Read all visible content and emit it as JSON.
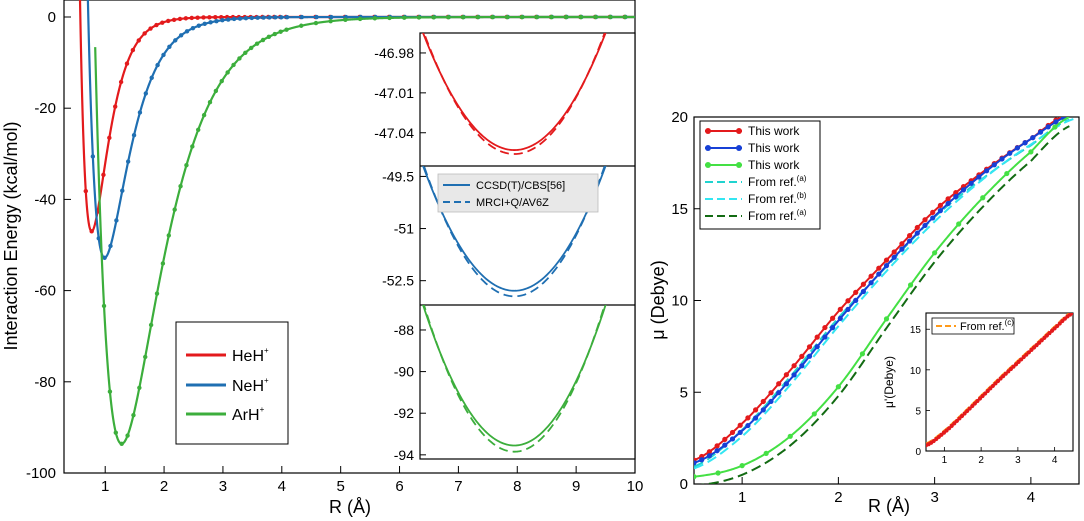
{
  "colors": {
    "red": "#e31a1c",
    "blue": "#1f6fb2",
    "green": "#3cae3c",
    "dot_red": "#e31a1c",
    "dot_blue": "#1740d6",
    "dot_green": "#44e044",
    "cyan": "#20d3cf",
    "lightcyan": "#33e6f2",
    "darkgreen": "#136b13",
    "orange": "#ff9a1a"
  },
  "chart_data": [
    {
      "id": "left-main",
      "type": "line",
      "xlabel": "R (Å)",
      "ylabel": "Interaction Energy (kcal/mol)",
      "xlim": [
        0.3,
        10
      ],
      "ylim": [
        -100,
        3
      ],
      "xticks": [
        "1",
        "2",
        "3",
        "4",
        "5",
        "6",
        "7",
        "8",
        "9",
        "10"
      ],
      "yticks": [
        "0",
        "-20",
        "-40",
        "-60",
        "-80",
        "-100"
      ],
      "legend": {
        "position": "bottom-left",
        "entries": [
          {
            "label": "HeH",
            "sup": "+"
          },
          {
            "label": "NeH",
            "sup": "+"
          },
          {
            "label": "ArH",
            "sup": "+"
          }
        ]
      },
      "series": [
        {
          "name": "HeH+",
          "De": 47.0,
          "Re": 0.77,
          "a": 3.6,
          "min_value": -47.0
        },
        {
          "name": "NeH+",
          "De": 52.8,
          "Re": 0.99,
          "a": 2.5,
          "min_value": -52.8
        },
        {
          "name": "ArH+",
          "De": 93.6,
          "Re": 1.28,
          "a": 1.5,
          "min_value": -93.6
        }
      ]
    },
    {
      "id": "inset-heh",
      "type": "line",
      "yticks": [
        "-46.98",
        "-47.01",
        "-47.04"
      ],
      "ylim": [
        -47.065,
        -46.965
      ],
      "series": [
        {
          "name": "CCSD(T)/CBS[56]",
          "style": "solid",
          "min": -47.053
        },
        {
          "name": "MRCI+Q/AV6Z",
          "style": "dashed",
          "min": -47.056
        }
      ]
    },
    {
      "id": "inset-neh",
      "type": "line",
      "yticks": [
        "-49.5",
        "-51",
        "-52.5"
      ],
      "ylim": [
        -53.2,
        -49.2
      ],
      "legend": {
        "position": "top",
        "entries": [
          "CCSD(T)/CBS[56]",
          "MRCI+Q/AV6Z"
        ]
      },
      "series": [
        {
          "name": "CCSD(T)/CBS[56]",
          "style": "solid",
          "min": -52.79
        },
        {
          "name": "MRCI+Q/AV6Z",
          "style": "dashed",
          "min": -52.95
        }
      ]
    },
    {
      "id": "inset-arh",
      "type": "line",
      "yticks": [
        "-88",
        "-90",
        "-92",
        "-94"
      ],
      "ylim": [
        -94.2,
        -86.8
      ],
      "series": [
        {
          "name": "CCSD(T)/CBS[56]",
          "style": "solid",
          "min": -93.55
        },
        {
          "name": "MRCI+Q/AV6Z",
          "style": "dashed",
          "min": -93.85
        }
      ]
    },
    {
      "id": "right-main",
      "type": "line",
      "xlabel": "R (Å)",
      "ylabel": "μ (Debye)",
      "xlim": [
        0.5,
        4.5
      ],
      "ylim": [
        0,
        20
      ],
      "xticks": [
        "1",
        "2",
        "3",
        "4"
      ],
      "yticks": [
        "0",
        "5",
        "10",
        "15",
        "20"
      ],
      "legend": {
        "position": "top-left",
        "entries": [
          {
            "label": "This work",
            "sup": ""
          },
          {
            "label": "This work",
            "sup": ""
          },
          {
            "label": "This work",
            "sup": ""
          },
          {
            "label": "From ref.",
            "sup": "(a)"
          },
          {
            "label": "From ref.",
            "sup": "(b)"
          },
          {
            "label": "From ref.",
            "sup": "(a)"
          }
        ]
      },
      "series": [
        {
          "name": "This work (HeH+)",
          "points": [
            [
              0.5,
              1.3
            ],
            [
              1.0,
              3.3
            ],
            [
              1.5,
              6.2
            ],
            [
              2.0,
              9.4
            ],
            [
              2.5,
              12.2
            ],
            [
              3.0,
              14.9
            ],
            [
              3.5,
              17.0
            ],
            [
              4.0,
              18.8
            ],
            [
              4.4,
              20.2
            ]
          ]
        },
        {
          "name": "This work (NeH+)",
          "points": [
            [
              0.5,
              1.15
            ],
            [
              1.0,
              2.9
            ],
            [
              1.5,
              5.7
            ],
            [
              2.0,
              8.9
            ],
            [
              2.5,
              11.9
            ],
            [
              3.0,
              14.6
            ],
            [
              3.5,
              16.9
            ],
            [
              4.0,
              18.8
            ],
            [
              4.45,
              20.2
            ]
          ]
        },
        {
          "name": "This work (ArH+)",
          "points": [
            [
              0.5,
              0.4
            ],
            [
              1.0,
              1.0
            ],
            [
              1.5,
              2.6
            ],
            [
              2.0,
              5.3
            ],
            [
              2.5,
              9.0
            ],
            [
              3.0,
              12.6
            ],
            [
              3.5,
              15.6
            ],
            [
              4.0,
              18.1
            ],
            [
              4.4,
              20.0
            ]
          ]
        }
      ]
    },
    {
      "id": "right-inset",
      "type": "line",
      "ylabel": "μ'(Debye)",
      "xlim": [
        0.5,
        4.5
      ],
      "ylim": [
        0,
        17
      ],
      "xticks": [
        "1",
        "2",
        "3",
        "4"
      ],
      "yticks": [
        "0",
        "5",
        "10",
        "15"
      ],
      "legend": {
        "position": "top-left",
        "entries": [
          {
            "label": "From ref.",
            "sup": "(c)"
          }
        ]
      },
      "series": [
        {
          "name": "This work",
          "points": [
            [
              0.5,
              0.7
            ],
            [
              1.0,
              2.3
            ],
            [
              1.5,
              4.4
            ],
            [
              2.0,
              6.6
            ],
            [
              2.5,
              8.8
            ],
            [
              3.0,
              10.9
            ],
            [
              3.5,
              13.0
            ],
            [
              4.0,
              15.1
            ],
            [
              4.5,
              17.0
            ]
          ]
        }
      ]
    }
  ]
}
